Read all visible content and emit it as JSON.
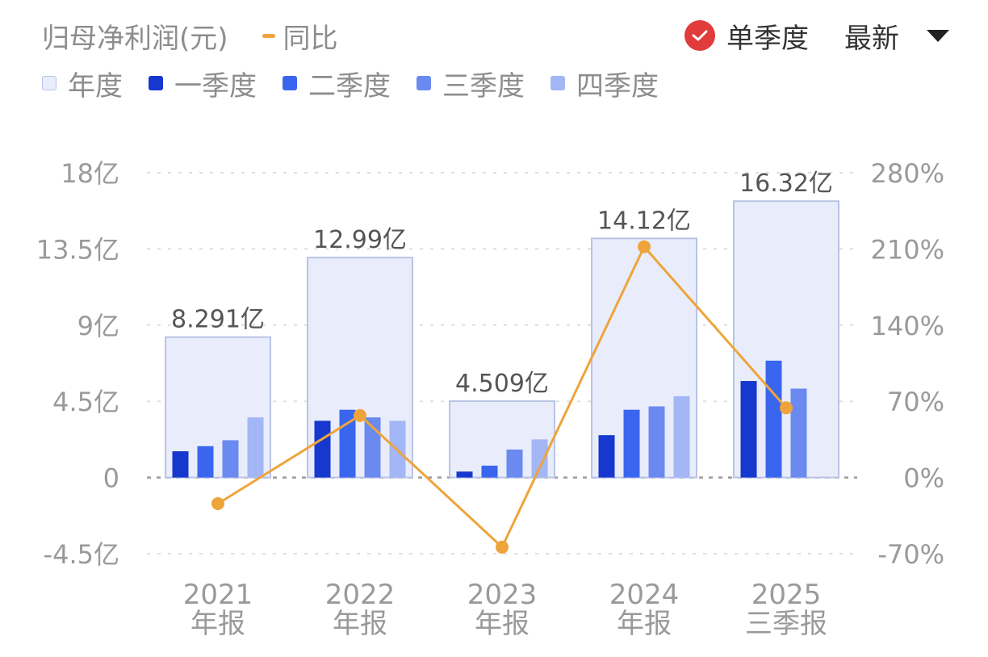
{
  "header": {
    "metric_title": "归母净利润(元)",
    "yoy_label": "同比",
    "toggle_label": "单季度",
    "period_select": "最新"
  },
  "legend": [
    {
      "label": "年度",
      "color": "#e9edfb",
      "border": "#b8c4e6"
    },
    {
      "label": "一季度",
      "color": "#1638cf"
    },
    {
      "label": "二季度",
      "color": "#3a65ef"
    },
    {
      "label": "三季度",
      "color": "#6a8af0"
    },
    {
      "label": "四季度",
      "color": "#a3b6f5"
    }
  ],
  "colors": {
    "line": "#eea43b",
    "toggle_check": "#e23b3b"
  },
  "chart_data": {
    "type": "bar",
    "categories": [
      {
        "year": "2021",
        "period": "年报"
      },
      {
        "year": "2022",
        "period": "年报"
      },
      {
        "year": "2023",
        "period": "年报"
      },
      {
        "year": "2024",
        "period": "年报"
      },
      {
        "year": "2025",
        "period": "三季报"
      }
    ],
    "annual": [
      8.291,
      12.99,
      4.509,
      14.12,
      16.32
    ],
    "annual_labels": [
      "8.291亿",
      "12.99亿",
      "4.509亿",
      "14.12亿",
      "16.32亿"
    ],
    "series": [
      {
        "name": "一季度",
        "values": [
          1.55,
          3.35,
          0.35,
          2.5,
          5.7
        ]
      },
      {
        "name": "二季度",
        "values": [
          1.85,
          4.0,
          0.7,
          4.0,
          6.9
        ]
      },
      {
        "name": "三季度",
        "values": [
          2.2,
          3.55,
          1.65,
          4.2,
          5.25
        ]
      },
      {
        "name": "四季度",
        "values": [
          3.55,
          3.35,
          2.25,
          4.8,
          null
        ]
      }
    ],
    "yoy": [
      -24,
      57,
      -64,
      212,
      64
    ],
    "y_left": {
      "min": -4.5,
      "max": 18,
      "ticks": [
        "-4.5亿",
        "0",
        "4.5亿",
        "9亿",
        "13.5亿",
        "18亿"
      ]
    },
    "y_right": {
      "min": -70,
      "max": 280,
      "ticks": [
        "-70%",
        "0%",
        "70%",
        "140%",
        "210%",
        "280%"
      ]
    }
  }
}
